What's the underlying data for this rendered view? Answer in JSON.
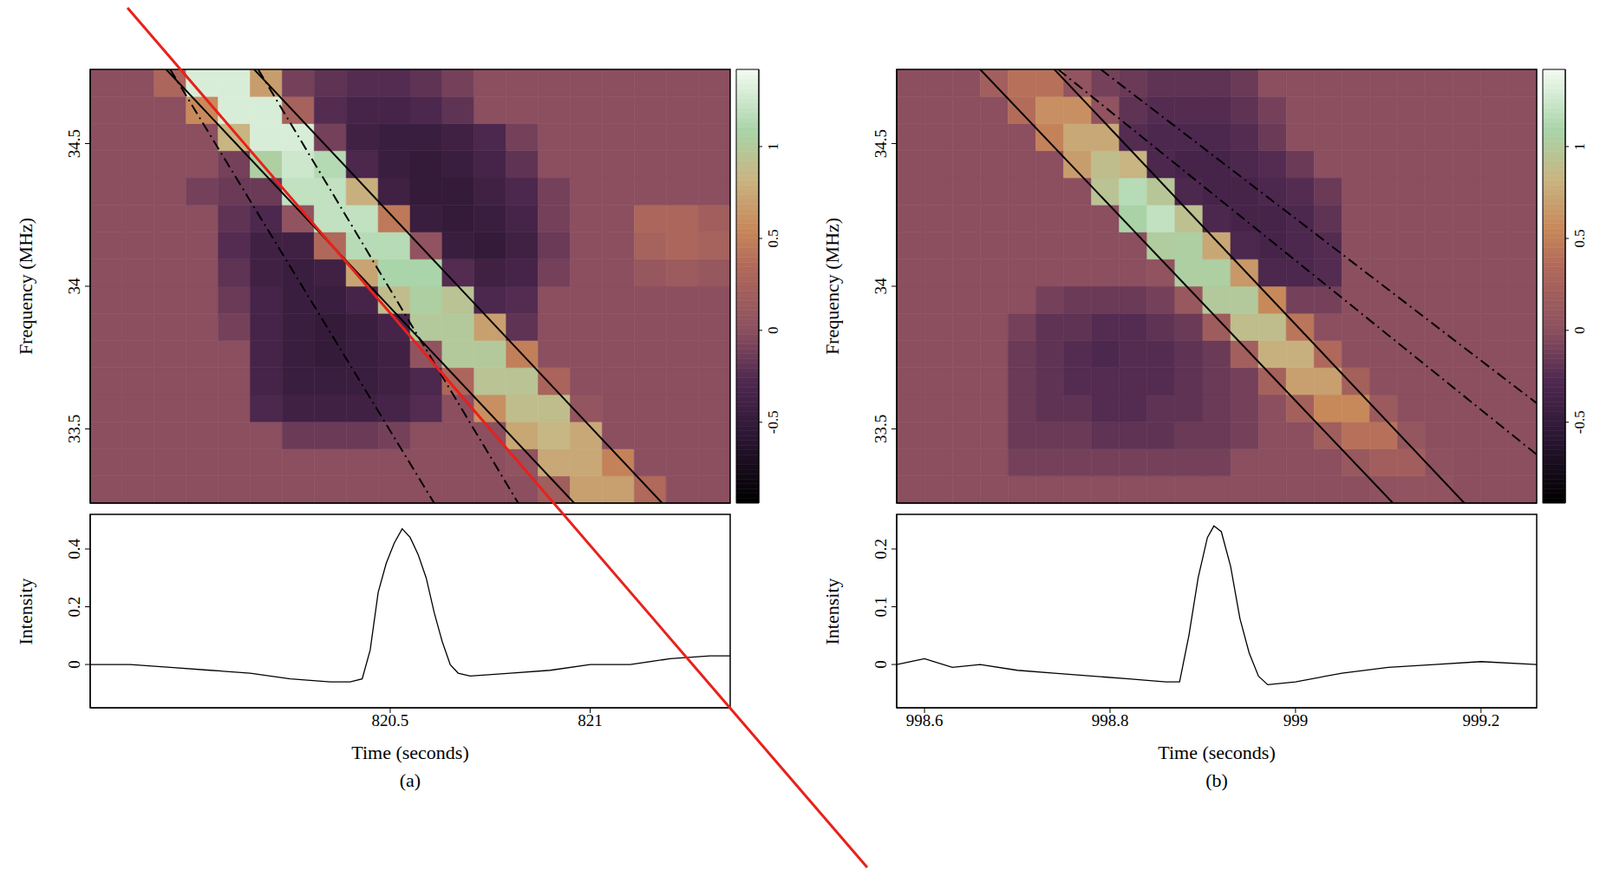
{
  "chart_data": [
    {
      "type": "heatmap",
      "ylabel": "Frequency (MHz)",
      "xlim": [
        819.75,
        821.35
      ],
      "xticks": [
        820.5,
        821
      ],
      "ylim": [
        33.24,
        34.76
      ],
      "yticks": [
        33.5,
        34,
        34.5
      ],
      "tick_labels": "y",
      "x_edges": [
        819.75,
        819.83,
        819.91,
        819.99,
        820.07,
        820.15,
        820.23,
        820.31,
        820.39,
        820.47,
        820.55,
        820.63,
        820.71,
        820.79,
        820.87,
        820.95,
        821.03,
        821.11,
        821.19,
        821.27,
        821.35
      ],
      "y_edges": [
        33.24,
        33.335,
        33.43,
        33.525,
        33.62,
        33.715,
        33.81,
        33.905,
        34.0,
        34.095,
        34.19,
        34.285,
        34.38,
        34.475,
        34.57,
        34.665,
        34.76
      ],
      "cells": [
        [
          0,
          0,
          0,
          0,
          0,
          0,
          0,
          0,
          0,
          0,
          0,
          0,
          0,
          0,
          0.19,
          0.7,
          0.7,
          0.34,
          0,
          0
        ],
        [
          0,
          0,
          0,
          0,
          0,
          0,
          0,
          0,
          0,
          0,
          0,
          0,
          0,
          0.05,
          0.75,
          0.75,
          0.51,
          0,
          0,
          0
        ],
        [
          0,
          0,
          0,
          0,
          0,
          0,
          -0.15,
          -0.15,
          -0.15,
          -0.1,
          0,
          0,
          0,
          0.74,
          0.85,
          0.75,
          0,
          0,
          0,
          0
        ],
        [
          0,
          0,
          0,
          0,
          0,
          -0.3,
          -0.4,
          -0.4,
          -0.4,
          -0.35,
          -0.25,
          0,
          0.6,
          0.9,
          0.9,
          0.07,
          0,
          0,
          0,
          0
        ],
        [
          0,
          0,
          0,
          0,
          0,
          -0.35,
          -0.45,
          -0.45,
          -0.45,
          -0.4,
          -0.3,
          0.3,
          0.95,
          0.95,
          0.28,
          0,
          0,
          0,
          0,
          0
        ],
        [
          0,
          0,
          0,
          0,
          0,
          -0.35,
          -0.45,
          -0.5,
          -0.45,
          -0.4,
          0.05,
          1.0,
          1.0,
          0.49,
          0,
          0,
          0,
          0,
          0,
          0
        ],
        [
          0,
          0,
          0,
          0,
          -0.1,
          -0.35,
          -0.45,
          -0.5,
          -0.45,
          -0.35,
          1.0,
          1.0,
          0.69,
          -0.2,
          0,
          0,
          0,
          0,
          0,
          0
        ],
        [
          0,
          0,
          0,
          0,
          -0.15,
          -0.35,
          -0.45,
          -0.45,
          -0.35,
          0.89,
          1.05,
          0.95,
          -0.3,
          -0.25,
          0,
          0,
          0,
          0,
          0,
          0
        ],
        [
          0,
          0,
          0,
          0,
          -0.2,
          -0.4,
          -0.45,
          -0.4,
          0.72,
          1.1,
          1.1,
          -0.25,
          -0.4,
          -0.35,
          -0.1,
          0,
          0,
          0.1,
          0.15,
          0.1
        ],
        [
          0,
          0,
          0,
          0,
          -0.25,
          -0.4,
          -0.4,
          0.33,
          1.15,
          1.15,
          0.05,
          -0.45,
          -0.5,
          -0.4,
          -0.15,
          0,
          0,
          0.25,
          0.3,
          0.25
        ],
        [
          0,
          0,
          0,
          0,
          -0.2,
          -0.3,
          0.05,
          1.2,
          1.2,
          0.45,
          -0.45,
          -0.5,
          -0.45,
          -0.35,
          -0.1,
          0,
          0,
          0.3,
          0.3,
          0.2
        ],
        [
          0,
          0,
          0,
          -0.1,
          -0.15,
          -0.15,
          1.2,
          1.2,
          0.8,
          -0.4,
          -0.5,
          -0.5,
          -0.4,
          -0.3,
          -0.1,
          0,
          0,
          0,
          0,
          0
        ],
        [
          0,
          0,
          0,
          0,
          -0.1,
          1.05,
          1.25,
          1.14,
          -0.3,
          -0.45,
          -0.5,
          -0.45,
          -0.35,
          -0.2,
          0,
          0,
          0,
          0,
          0,
          0
        ],
        [
          0,
          0,
          0,
          0,
          0.83,
          1.3,
          1.3,
          -0.1,
          -0.4,
          -0.45,
          -0.45,
          -0.4,
          -0.3,
          -0.1,
          0,
          0,
          0,
          0,
          0,
          0
        ],
        [
          0,
          0,
          0,
          0.56,
          1.3,
          1.3,
          0.25,
          -0.25,
          -0.35,
          -0.35,
          -0.3,
          -0.2,
          0,
          0,
          0,
          0,
          0,
          0,
          0,
          0
        ],
        [
          0,
          0,
          0.3,
          1.3,
          1.3,
          0.68,
          -0.1,
          -0.2,
          -0.25,
          -0.25,
          -0.2,
          -0.1,
          0,
          0,
          0,
          0,
          0,
          0,
          0,
          0
        ]
      ],
      "colorbar": {
        "range": [
          -0.94,
          1.42
        ],
        "ticks": [
          -0.5,
          0,
          0.5,
          1
        ]
      },
      "series": [
        {
          "color": "#000000",
          "line_style": "solid",
          "x": [
            819.94,
            820.96
          ],
          "values": [
            34.76,
            33.24
          ]
        },
        {
          "color": "#000000",
          "line_style": "solid",
          "x": [
            820.16,
            821.18
          ],
          "values": [
            34.76,
            33.24
          ]
        },
        {
          "color": "#000000",
          "line_style": "dashdot",
          "x": [
            819.95,
            820.61
          ],
          "values": [
            34.76,
            33.24
          ]
        },
        {
          "color": "#000000",
          "line_style": "dashdot",
          "x": [
            820.17,
            820.82
          ],
          "values": [
            34.76,
            33.24
          ]
        }
      ]
    },
    {
      "type": "line",
      "xlabel": "Time (seconds)",
      "ylabel": "Intensity",
      "xlim": [
        819.75,
        821.35
      ],
      "xticks": [
        820.5,
        821
      ],
      "ylim": [
        -0.15,
        0.52
      ],
      "yticks": [
        0,
        0.2,
        0.4
      ],
      "color": "#000000",
      "annotations": [
        "(a)"
      ],
      "x": [
        819.75,
        819.85,
        819.95,
        820.05,
        820.15,
        820.25,
        820.35,
        820.4,
        820.43,
        820.45,
        820.47,
        820.49,
        820.51,
        820.53,
        820.55,
        820.57,
        820.59,
        820.61,
        820.63,
        820.65,
        820.67,
        820.7,
        820.8,
        820.9,
        821.0,
        821.1,
        821.2,
        821.3,
        821.35
      ],
      "values": [
        0.0,
        0.0,
        -0.01,
        -0.02,
        -0.03,
        -0.05,
        -0.06,
        -0.06,
        -0.05,
        0.05,
        0.25,
        0.35,
        0.42,
        0.47,
        0.44,
        0.38,
        0.3,
        0.18,
        0.08,
        0.0,
        -0.03,
        -0.04,
        -0.03,
        -0.02,
        0.0,
        0.0,
        0.02,
        0.03,
        0.03
      ]
    },
    {
      "type": "heatmap",
      "ylabel": "Frequency (MHz)",
      "xlim": [
        998.57,
        999.26
      ],
      "xticks": [
        998.6,
        998.8,
        999,
        999.2
      ],
      "ylim": [
        33.24,
        34.76
      ],
      "yticks": [
        33.5,
        34,
        34.5
      ],
      "tick_labels": "y",
      "x_edges": [
        998.57,
        998.6,
        998.63,
        998.66,
        998.69,
        998.72,
        998.75,
        998.78,
        998.81,
        998.84,
        998.87,
        998.9,
        998.93,
        998.96,
        998.99,
        999.02,
        999.05,
        999.08,
        999.11,
        999.14,
        999.17,
        999.2,
        999.23,
        999.26
      ],
      "y_edges": [
        33.24,
        33.335,
        33.43,
        33.525,
        33.62,
        33.715,
        33.81,
        33.905,
        34.0,
        34.095,
        34.19,
        34.285,
        34.38,
        34.475,
        34.57,
        34.665,
        34.76
      ],
      "cells": [
        [
          0,
          0,
          0,
          0,
          0,
          0,
          0,
          0,
          0,
          0,
          0,
          0,
          0,
          0,
          0,
          0,
          0,
          0.03,
          0.05,
          0.05,
          0,
          0,
          0
        ],
        [
          0,
          0,
          0,
          0,
          -0.1,
          -0.1,
          -0.1,
          -0.1,
          -0.1,
          -0.1,
          -0.1,
          -0.1,
          0,
          0,
          0,
          0,
          0.11,
          0.2,
          0.2,
          0.02,
          0,
          0,
          0
        ],
        [
          0,
          0,
          0,
          0,
          -0.15,
          -0.15,
          -0.15,
          -0.2,
          -0.2,
          -0.2,
          -0.15,
          -0.15,
          -0.1,
          0,
          0,
          0.19,
          0.4,
          0.4,
          0.08,
          0,
          0,
          0,
          0
        ],
        [
          0,
          0,
          0,
          0,
          -0.15,
          -0.2,
          -0.2,
          -0.25,
          -0.25,
          -0.2,
          -0.2,
          -0.15,
          -0.1,
          0,
          0.23,
          0.55,
          0.55,
          0.14,
          0,
          0,
          0,
          0,
          0
        ],
        [
          0,
          0,
          0,
          0,
          -0.15,
          -0.2,
          -0.25,
          -0.25,
          -0.25,
          -0.25,
          -0.2,
          -0.15,
          -0.1,
          0.24,
          0.7,
          0.7,
          0.23,
          0,
          0,
          0,
          0,
          0,
          0
        ],
        [
          0,
          0,
          0,
          0,
          -0.15,
          -0.2,
          -0.25,
          -0.3,
          -0.25,
          -0.25,
          -0.2,
          -0.15,
          0.21,
          0.8,
          0.8,
          0.33,
          0,
          0,
          0,
          0,
          0,
          0,
          0
        ],
        [
          0,
          0,
          0,
          0,
          -0.1,
          -0.2,
          -0.2,
          -0.25,
          -0.25,
          -0.2,
          -0.15,
          0.17,
          0.9,
          0.9,
          0.43,
          0,
          0,
          0,
          0,
          0,
          0,
          0,
          0
        ],
        [
          0,
          0,
          0,
          0,
          0,
          -0.1,
          -0.15,
          -0.15,
          -0.15,
          -0.1,
          0.12,
          1.0,
          1.0,
          0.55,
          -0.1,
          -0.1,
          0,
          0,
          0,
          0,
          0,
          0,
          0
        ],
        [
          0,
          0,
          0,
          0,
          0,
          0,
          0,
          0,
          0,
          0.05,
          1.05,
          1.05,
          0.65,
          -0.3,
          -0.3,
          -0.25,
          0,
          0,
          0,
          0,
          0,
          0,
          0
        ],
        [
          0,
          0,
          0,
          0,
          0,
          0,
          0,
          0,
          0,
          1.02,
          1.05,
          0.74,
          -0.3,
          -0.35,
          -0.3,
          -0.25,
          0,
          0,
          0,
          0,
          0,
          0,
          0
        ],
        [
          0,
          0,
          0,
          0,
          0,
          0,
          0,
          0,
          1.08,
          1.2,
          0.92,
          -0.3,
          -0.35,
          -0.35,
          -0.3,
          -0.2,
          0,
          0,
          0,
          0,
          0,
          0,
          0
        ],
        [
          0,
          0,
          0,
          0,
          0,
          0,
          0,
          0.95,
          1.15,
          0.97,
          -0.3,
          -0.35,
          -0.35,
          -0.3,
          -0.25,
          -0.15,
          0,
          0,
          0,
          0,
          0,
          0,
          0
        ],
        [
          0,
          0,
          0,
          0,
          0,
          0,
          0.68,
          0.9,
          0.83,
          -0.3,
          -0.35,
          -0.35,
          -0.3,
          -0.25,
          -0.15,
          0,
          0,
          0,
          0,
          0,
          0,
          0,
          0
        ],
        [
          0,
          0,
          0,
          0,
          0,
          0.51,
          0.75,
          0.75,
          -0.25,
          -0.3,
          -0.3,
          -0.3,
          -0.25,
          -0.15,
          0,
          0,
          0,
          0,
          0,
          0,
          0,
          0,
          0
        ],
        [
          0,
          0,
          0,
          0,
          0.37,
          0.6,
          0.6,
          0.04,
          -0.2,
          -0.25,
          -0.25,
          -0.25,
          -0.2,
          -0.1,
          0,
          0,
          0,
          0,
          0,
          0,
          0,
          0,
          0
        ],
        [
          0,
          0,
          0,
          0.21,
          0.4,
          0.4,
          0.06,
          -0.1,
          -0.15,
          -0.2,
          -0.2,
          -0.2,
          -0.15,
          0,
          0,
          0,
          0,
          0,
          0,
          0,
          0,
          0,
          0
        ]
      ],
      "colorbar": {
        "range": [
          -0.94,
          1.42
        ],
        "ticks": [
          -0.5,
          0,
          0.5,
          1
        ]
      },
      "series": [
        {
          "color": "#000000",
          "line_style": "solid",
          "x": [
            998.66,
            999.105
          ],
          "values": [
            34.76,
            33.24
          ]
        },
        {
          "color": "#000000",
          "line_style": "solid",
          "x": [
            998.74,
            999.182
          ],
          "values": [
            34.76,
            33.24
          ]
        },
        {
          "color": "#000000",
          "line_style": "dashdot",
          "x": [
            998.744,
            999.26
          ],
          "values": [
            34.76,
            33.41
          ]
        },
        {
          "color": "#000000",
          "line_style": "dashdot",
          "x": [
            998.79,
            999.26
          ],
          "values": [
            34.76,
            33.59
          ]
        }
      ]
    },
    {
      "type": "line",
      "xlabel": "Time (seconds)",
      "ylabel": "Intensity",
      "xlim": [
        998.57,
        999.26
      ],
      "xticks": [
        998.6,
        998.8,
        999,
        999.2
      ],
      "ylim": [
        -0.075,
        0.26
      ],
      "yticks": [
        0,
        0.1,
        0.2
      ],
      "color": "#000000",
      "annotations": [
        "(b)"
      ],
      "x": [
        998.57,
        998.6,
        998.63,
        998.66,
        998.7,
        998.74,
        998.78,
        998.82,
        998.86,
        998.875,
        998.885,
        998.895,
        998.905,
        998.912,
        998.92,
        998.93,
        998.94,
        998.95,
        998.96,
        998.97,
        999.0,
        999.05,
        999.1,
        999.15,
        999.2,
        999.26
      ],
      "values": [
        0.0,
        0.01,
        -0.005,
        0.0,
        -0.01,
        -0.015,
        -0.02,
        -0.025,
        -0.03,
        -0.03,
        0.05,
        0.15,
        0.22,
        0.24,
        0.23,
        0.17,
        0.08,
        0.02,
        -0.02,
        -0.035,
        -0.03,
        -0.015,
        -0.005,
        0.0,
        0.005,
        0.0
      ]
    }
  ]
}
